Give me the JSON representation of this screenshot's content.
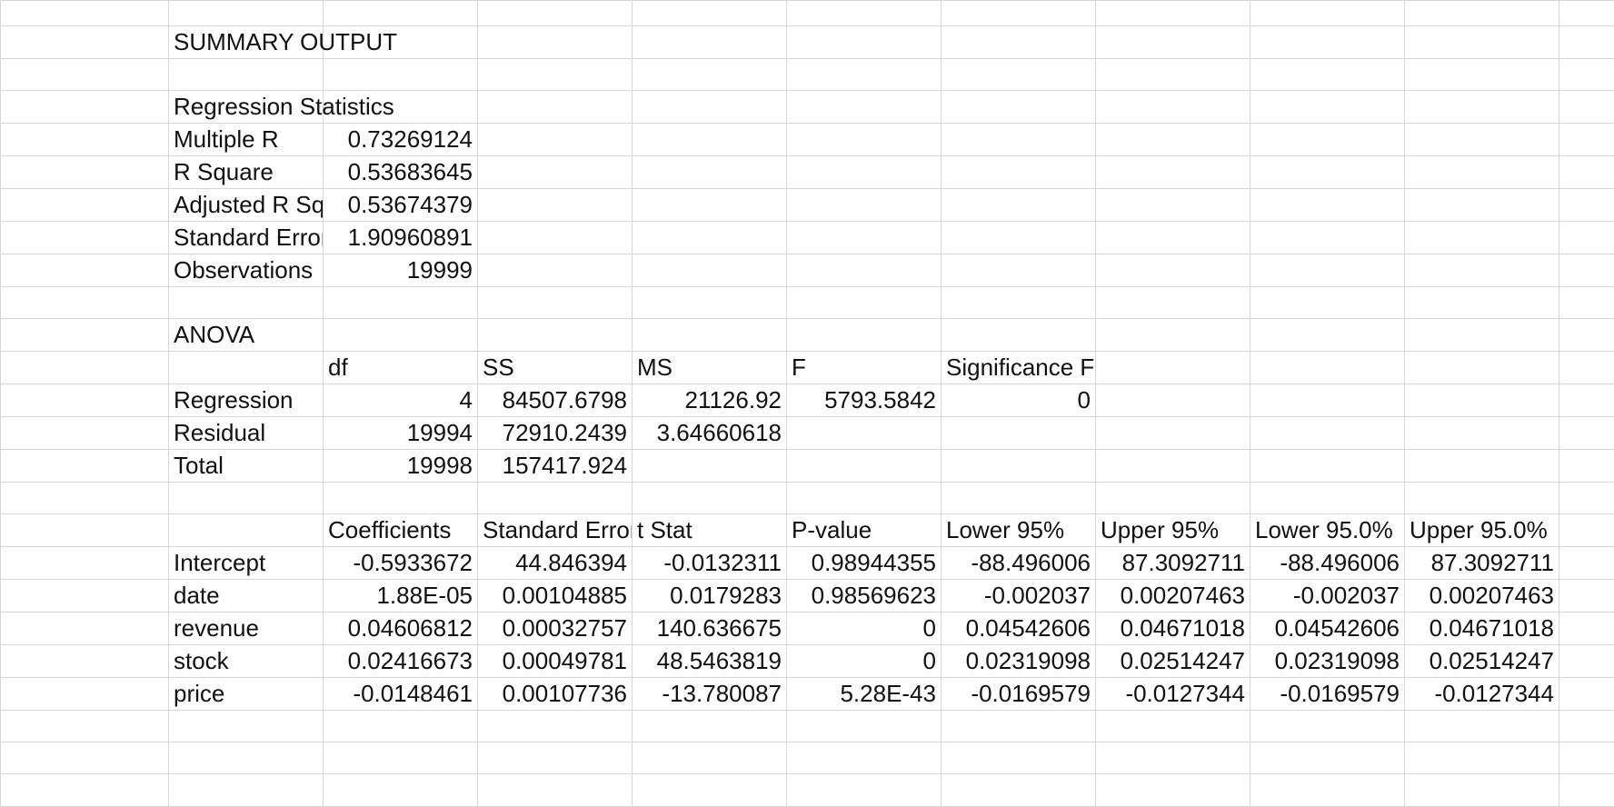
{
  "summary_title": "SUMMARY OUTPUT",
  "regression_statistics": {
    "header": "Regression Statistics",
    "rows": [
      [
        "Multiple R",
        "0.73269124"
      ],
      [
        "R Square",
        "0.53683645"
      ],
      [
        "Adjusted R Square",
        "0.53674379"
      ],
      [
        "Standard Error",
        "1.90960891"
      ],
      [
        "Observations",
        "19999"
      ]
    ]
  },
  "anova": {
    "title": "ANOVA",
    "headers": [
      "",
      "df",
      "SS",
      "MS",
      "F",
      "Significance F"
    ],
    "rows": [
      [
        "Regression",
        "4",
        "84507.6798",
        "21126.92",
        "5793.5842",
        "0"
      ],
      [
        "Residual",
        "19994",
        "72910.2439",
        "3.64660618",
        "",
        ""
      ],
      [
        "Total",
        "19998",
        "157417.924",
        "",
        "",
        ""
      ]
    ]
  },
  "coefficients": {
    "headers": [
      "",
      "Coefficients",
      "Standard Error",
      "t Stat",
      "P-value",
      "Lower 95%",
      "Upper 95%",
      "Lower 95.0%",
      "Upper 95.0%"
    ],
    "rows": [
      [
        "Intercept",
        "-0.5933672",
        "44.846394",
        "-0.0132311",
        "0.98944355",
        "-88.496006",
        "87.3092711",
        "-88.496006",
        "87.3092711"
      ],
      [
        "date",
        "1.88E-05",
        "0.00104885",
        "0.0179283",
        "0.98569623",
        "-0.002037",
        "0.00207463",
        "-0.002037",
        "0.00207463"
      ],
      [
        "revenue",
        "0.04606812",
        "0.00032757",
        "140.636675",
        "0",
        "0.04542606",
        "0.04671018",
        "0.04542606",
        "0.04671018"
      ],
      [
        "stock",
        "0.02416673",
        "0.00049781",
        "48.5463819",
        "0",
        "0.02319098",
        "0.02514247",
        "0.02319098",
        "0.02514247"
      ],
      [
        "price",
        "-0.0148461",
        "0.00107736",
        "-13.780087",
        "5.28E-43",
        "-0.0169579",
        "-0.0127344",
        "-0.0169579",
        "-0.0127344"
      ]
    ]
  }
}
